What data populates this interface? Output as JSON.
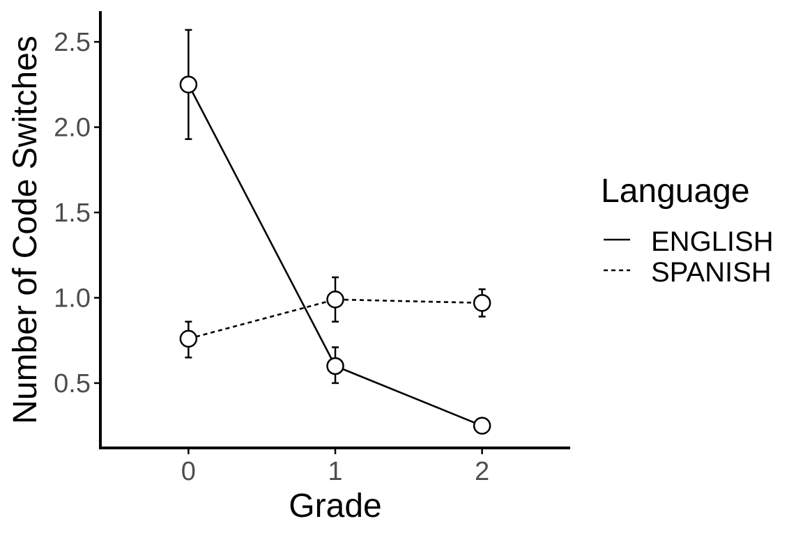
{
  "chart_data": {
    "type": "line",
    "xlabel": "Grade",
    "ylabel": "Number of Code Switches",
    "x": [
      0,
      1,
      2
    ],
    "x_ticks": [
      "0",
      "1",
      "2"
    ],
    "y_ticks": [
      "0.5",
      "1.0",
      "1.5",
      "2.0",
      "2.5"
    ],
    "xlim": [
      -0.6,
      2.6
    ],
    "ylim": [
      0.12,
      2.68
    ],
    "grid": false,
    "legend": {
      "title": "Language",
      "placement": "right"
    },
    "series": [
      {
        "name": "ENGLISH",
        "linestyle": "solid",
        "values": [
          2.25,
          0.6,
          0.25
        ],
        "error_low": [
          1.93,
          0.5,
          0.25
        ],
        "error_high": [
          2.57,
          0.71,
          0.25
        ]
      },
      {
        "name": "SPANISH",
        "linestyle": "dotted",
        "values": [
          0.76,
          0.99,
          0.97
        ],
        "error_low": [
          0.65,
          0.86,
          0.89
        ],
        "error_high": [
          0.86,
          1.12,
          1.05
        ]
      }
    ],
    "colors": {
      "line": "#000000",
      "marker_fill": "#ffffff",
      "tick_text": "#4d4d4d"
    }
  }
}
